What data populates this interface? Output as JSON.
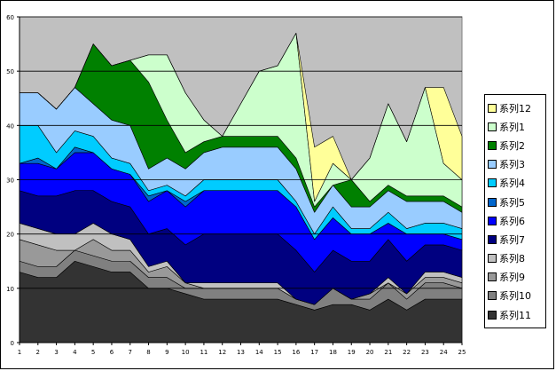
{
  "chart_data": {
    "type": "area",
    "stacked": true,
    "x": [
      1,
      2,
      3,
      4,
      5,
      6,
      7,
      8,
      9,
      10,
      11,
      12,
      13,
      14,
      15,
      16,
      17,
      18,
      19,
      20,
      21,
      22,
      23,
      24,
      25
    ],
    "ylim": [
      0,
      60
    ],
    "yticks": [
      0,
      10,
      20,
      30,
      40,
      50,
      60
    ],
    "grid": "horizontal",
    "plot_background": "#c0c0c0",
    "legend_position": "right",
    "series": [
      {
        "name": "系列11",
        "color": "#333333",
        "values": [
          13,
          12,
          12,
          15,
          14,
          13,
          13,
          10,
          10,
          9,
          8,
          8,
          8,
          8,
          8,
          7,
          6,
          7,
          7,
          6,
          8,
          6,
          8,
          8,
          8
        ]
      },
      {
        "name": "系列10",
        "color": "#808080",
        "values": [
          2,
          2,
          2,
          2,
          2,
          2,
          2,
          2,
          2,
          1,
          2,
          2,
          2,
          2,
          2,
          1,
          1,
          3,
          1,
          2,
          3,
          2,
          3,
          3,
          2
        ]
      },
      {
        "name": "系列9",
        "color": "#999999",
        "values": [
          4,
          4,
          3,
          0,
          3,
          2,
          2,
          1,
          2,
          1,
          0,
          0,
          0,
          0,
          0,
          0,
          0,
          0,
          0,
          1,
          0,
          1,
          1,
          1,
          1
        ]
      },
      {
        "name": "系列8",
        "color": "#c0c0c0",
        "values": [
          3,
          3,
          3,
          3,
          3,
          3,
          2,
          1,
          1,
          0,
          1,
          1,
          1,
          1,
          1,
          0,
          0,
          0,
          0,
          0,
          1,
          0,
          1,
          1,
          1
        ]
      },
      {
        "name": "系列7",
        "color": "#000080",
        "values": [
          6,
          6,
          7,
          8,
          6,
          6,
          6,
          6,
          6,
          7,
          9,
          9,
          9,
          9,
          9,
          9,
          6,
          7,
          7,
          6,
          7,
          6,
          5,
          5,
          5
        ]
      },
      {
        "name": "系列6",
        "color": "#0000ff",
        "values": [
          5,
          6,
          5,
          7,
          7,
          6,
          6,
          6,
          7,
          7,
          8,
          8,
          8,
          8,
          8,
          8,
          6,
          6,
          5,
          5,
          3,
          5,
          2,
          2,
          2
        ]
      },
      {
        "name": "系列5",
        "color": "#0066cc",
        "values": [
          0,
          1,
          0,
          1,
          0,
          0,
          0,
          1,
          0,
          1,
          0,
          0,
          0,
          0,
          0,
          0,
          0,
          0,
          0,
          0,
          0,
          0,
          0,
          0,
          0
        ]
      },
      {
        "name": "系列4",
        "color": "#00ccff",
        "values": [
          7,
          6,
          3,
          3,
          3,
          2,
          2,
          1,
          1,
          1,
          2,
          2,
          2,
          2,
          2,
          1,
          1,
          2,
          1,
          1,
          2,
          1,
          2,
          2,
          2
        ]
      },
      {
        "name": "系列3",
        "color": "#99ccff",
        "values": [
          6,
          6,
          8,
          8,
          6,
          7,
          7,
          4,
          5,
          5,
          5,
          6,
          6,
          6,
          6,
          6,
          4,
          4,
          4,
          4,
          4,
          5,
          4,
          4,
          3
        ]
      },
      {
        "name": "系列2",
        "color": "#008000",
        "values": [
          0,
          0,
          0,
          0,
          11,
          10,
          12,
          16,
          7,
          3,
          2,
          2,
          2,
          2,
          2,
          2,
          1,
          0,
          5,
          1,
          1,
          1,
          1,
          1,
          1
        ]
      },
      {
        "name": "系列1",
        "color": "#ccffcc",
        "values": [
          0,
          0,
          0,
          0,
          0,
          0,
          0,
          5,
          12,
          11,
          4,
          0,
          6,
          12,
          13,
          23,
          1,
          4,
          0,
          8,
          15,
          10,
          20,
          6,
          5
        ]
      },
      {
        "name": "系列12",
        "color": "#ffff99",
        "values": [
          0,
          0,
          0,
          0,
          0,
          0,
          0,
          0,
          0,
          0,
          0,
          0,
          0,
          0,
          0,
          0,
          10,
          5,
          0,
          0,
          0,
          0,
          0,
          14,
          8
        ]
      }
    ]
  }
}
